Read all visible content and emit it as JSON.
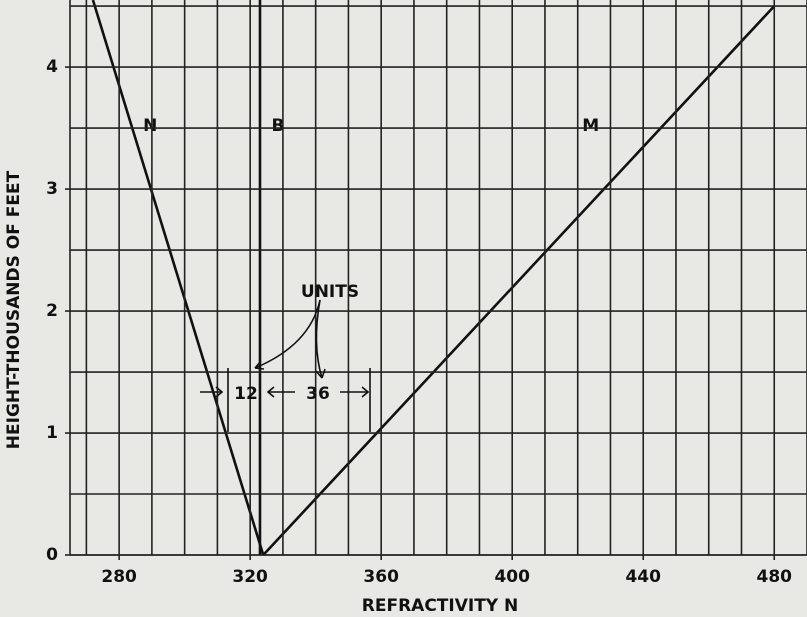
{
  "chart_data": {
    "type": "line",
    "xlabel": "REFRACTIVITY N",
    "ylabel": "HEIGHT-THOUSANDS OF FEET",
    "xlim": [
      265,
      490
    ],
    "ylim": [
      0,
      4.55
    ],
    "xticks": [
      280,
      320,
      360,
      400,
      440,
      480
    ],
    "yticks": [
      0,
      1,
      2,
      3,
      4
    ],
    "grid": true,
    "xgrid_step": 10,
    "ygrid_step": 0.5,
    "color": "#111111",
    "series": [
      {
        "name": "N",
        "x": [
          272,
          324
        ],
        "values": [
          4.55,
          0
        ]
      },
      {
        "name": "B",
        "x": [
          323,
          323
        ],
        "values": [
          0,
          4.55
        ]
      },
      {
        "name": "M",
        "x": [
          324,
          480
        ],
        "values": [
          0,
          4.5
        ]
      }
    ],
    "annotations": {
      "units": "UNITS",
      "left_span": "12",
      "right_span": "36"
    }
  }
}
